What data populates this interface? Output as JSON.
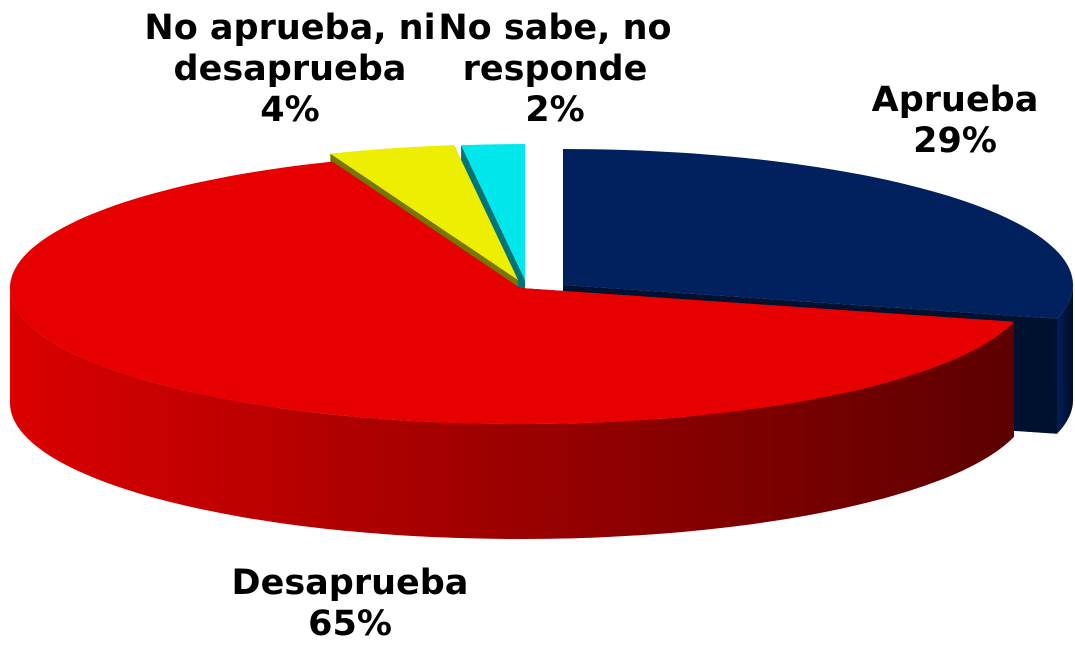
{
  "chart_data": {
    "type": "pie",
    "categories": [
      "Aprueba",
      "Desaprueba",
      "No aprueba, ni desaprueba",
      "No sabe, no responde"
    ],
    "values": [
      29,
      65,
      4,
      2
    ],
    "value_labels": [
      "29%",
      "65%",
      "4%",
      "2%"
    ],
    "colors": [
      "#00205e",
      "#e60000",
      "#eeee00",
      "#00e8ec"
    ]
  }
}
